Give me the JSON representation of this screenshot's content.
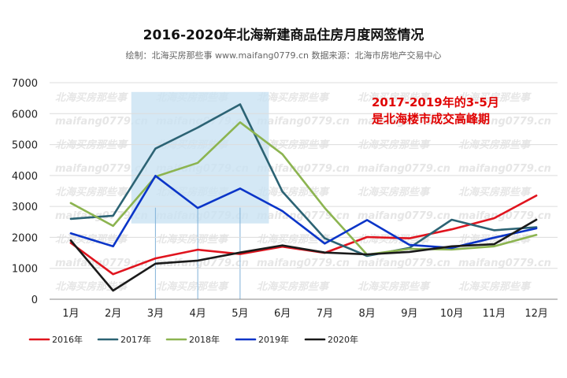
{
  "chart_data": {
    "type": "line",
    "title": "2016-2020年北海新建商品住房月度网签情况",
    "subtitle": "绘制：北海买房那些事 www.maifang0779.cn 数据来源：北海市房地产交易中心",
    "categories": [
      "1月",
      "2月",
      "3月",
      "4月",
      "5月",
      "6月",
      "7月",
      "8月",
      "9月",
      "10月",
      "11月",
      "12月"
    ],
    "ylim": [
      0,
      7000
    ],
    "yticks": [
      0,
      1000,
      2000,
      3000,
      4000,
      5000,
      6000,
      7000
    ],
    "grid": true,
    "legend_position": "bottom-left",
    "highlight": {
      "from_category": "3月",
      "to_category": "5月",
      "y_range": [
        2450,
        6700
      ],
      "color": "#c9e2f3",
      "annotation": [
        "2017-2019年的3-5月",
        "是北海楼市成交高峰期"
      ],
      "annotation_color": "#e00000"
    },
    "watermark": [
      "北海买房那些事",
      "maifang0779.cn"
    ],
    "series": [
      {
        "name": "2016年",
        "color": "#e0141e",
        "values": [
          1820,
          810,
          1320,
          1600,
          1460,
          1700,
          1500,
          2010,
          1970,
          2260,
          2620,
          3350
        ]
      },
      {
        "name": "2017年",
        "color": "#2c6374",
        "values": [
          2600,
          2700,
          4870,
          5550,
          6300,
          3480,
          1970,
          1400,
          1660,
          2570,
          2230,
          2330
        ]
      },
      {
        "name": "2018年",
        "color": "#8cb450",
        "values": [
          3110,
          2370,
          3960,
          4410,
          5720,
          4690,
          2950,
          1440,
          1630,
          1610,
          1710,
          2080
        ]
      },
      {
        "name": "2019年",
        "color": "#0b35c8",
        "values": [
          2130,
          1710,
          3990,
          2950,
          3580,
          2850,
          1800,
          2560,
          1760,
          1660,
          1990,
          2290
        ]
      },
      {
        "name": "2020年",
        "color": "#1a1a1a",
        "values": [
          1900,
          280,
          1150,
          1250,
          1510,
          1740,
          1510,
          1450,
          1530,
          1710,
          1780,
          2570
        ]
      }
    ]
  }
}
